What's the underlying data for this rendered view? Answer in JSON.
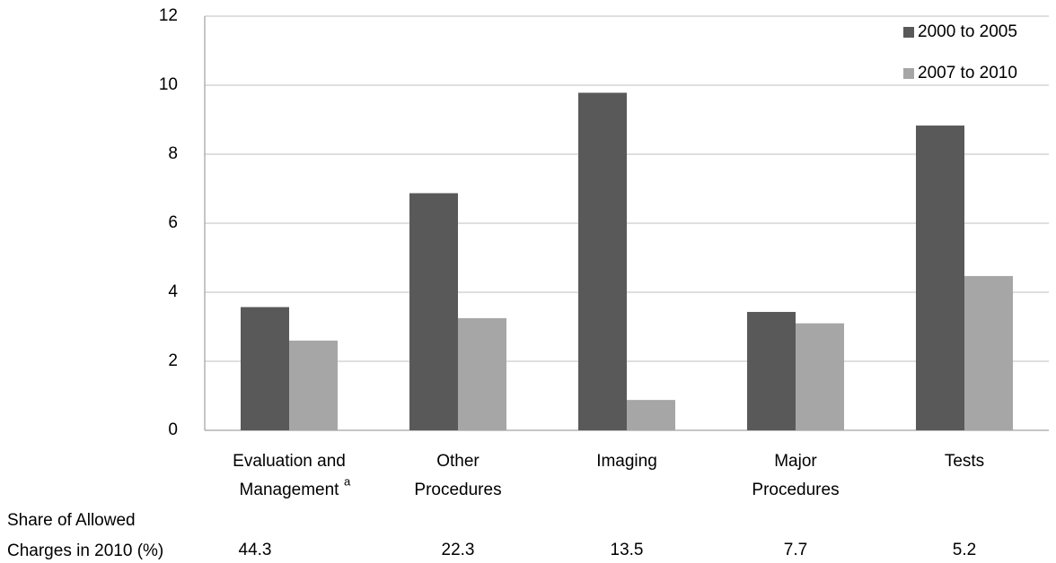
{
  "chart_data": {
    "type": "bar",
    "categories": [
      "Evaluation and\nManagement",
      "Other\nProcedures",
      "Imaging",
      "Major\nProcedures",
      "Tests"
    ],
    "category_footnotes": [
      "a",
      null,
      null,
      null,
      null
    ],
    "series": [
      {
        "name": "2000 to 2005",
        "color": "#595959",
        "values": [
          3.57,
          6.87,
          9.78,
          3.43,
          8.83
        ]
      },
      {
        "name": "2007 to 2010",
        "color": "#a6a6a6",
        "values": [
          2.6,
          3.25,
          0.88,
          3.1,
          4.47
        ]
      }
    ],
    "ylim": [
      0,
      12
    ],
    "yticks": [
      0,
      2,
      4,
      6,
      8,
      10,
      12
    ],
    "grid": true,
    "legend": "top-right",
    "share_row": {
      "label": "Share of Allowed\nCharges in 2010 (%)",
      "values": [
        44.3,
        22.3,
        13.5,
        7.7,
        5.2
      ]
    }
  }
}
